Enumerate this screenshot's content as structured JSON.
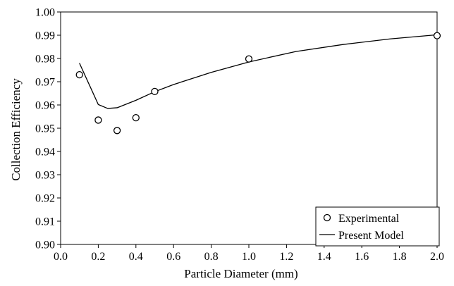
{
  "chart_data": {
    "type": "scatter",
    "title": "",
    "xlabel": "Particle Diameter (mm)",
    "ylabel": "Collection Efficiency",
    "xlim": [
      0.0,
      2.0
    ],
    "ylim": [
      0.9,
      1.0
    ],
    "x_ticks": [
      "0.0",
      "0.2",
      "0.4",
      "0.6",
      "0.8",
      "1.0",
      "1.2",
      "1.4",
      "1.6",
      "1.8",
      "2.0"
    ],
    "y_ticks": [
      "0.90",
      "0.91",
      "0.92",
      "0.93",
      "0.94",
      "0.95",
      "0.96",
      "0.97",
      "0.98",
      "0.99",
      "1.00"
    ],
    "grid": false,
    "legend_position": "bottom-right",
    "series": [
      {
        "name": "Experimental",
        "style": "open-circle-markers",
        "x": [
          0.1,
          0.2,
          0.3,
          0.4,
          0.5,
          1.0,
          2.0
        ],
        "y": [
          0.973,
          0.9535,
          0.949,
          0.9545,
          0.9658,
          0.9798,
          0.9898
        ]
      },
      {
        "name": "Present Model",
        "style": "solid-line",
        "x": [
          0.1,
          0.2,
          0.25,
          0.3,
          0.4,
          0.5,
          0.6,
          0.8,
          1.0,
          1.25,
          1.5,
          1.75,
          2.0
        ],
        "y": [
          0.978,
          0.9602,
          0.9585,
          0.9588,
          0.962,
          0.9657,
          0.9688,
          0.974,
          0.9785,
          0.983,
          0.986,
          0.9884,
          0.9902
        ]
      }
    ]
  }
}
